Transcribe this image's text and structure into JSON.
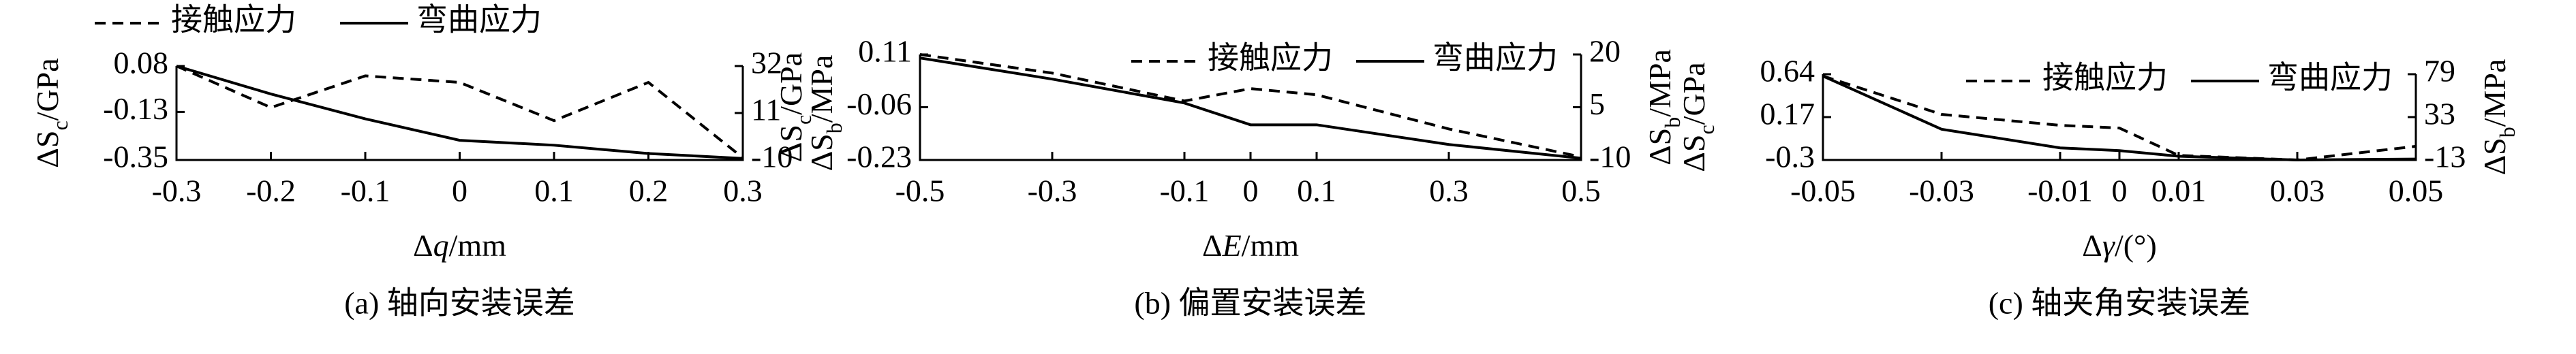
{
  "chart_data": [
    {
      "type": "line",
      "caption": "(a) 轴向安装误差",
      "xlabel": [
        "Δ",
        "q",
        "/mm"
      ],
      "ylabel": [
        "ΔS",
        "c",
        "/GPa"
      ],
      "y2label": [
        "ΔS",
        "b",
        "/MPa"
      ],
      "x": [
        -0.3,
        -0.2,
        -0.1,
        0,
        0.1,
        0.2,
        0.3
      ],
      "xlim": [
        -0.3,
        0.3
      ],
      "xticks": [
        -0.3,
        -0.2,
        -0.1,
        0,
        0.1,
        0.2,
        0.3
      ],
      "ylim": [
        -0.35,
        0.08
      ],
      "yticks": [
        0.08,
        -0.13,
        -0.35
      ],
      "y2lim": [
        -10,
        32
      ],
      "y2ticks": [
        32,
        11,
        -10
      ],
      "legend": "above",
      "series": [
        {
          "name": "接触应力",
          "color": "#000000",
          "style": "dashed",
          "values": [
            0.08,
            -0.11,
            0.035,
            0.005,
            -0.17,
            0.005,
            -0.34
          ]
        },
        {
          "name": "弯曲应力",
          "color": "#000000",
          "style": "solid",
          "axis": "y2",
          "values": [
            32,
            19.5,
            8.4,
            -1.2,
            -3.4,
            -7.1,
            -9.3
          ]
        }
      ]
    },
    {
      "type": "line",
      "caption": "(b) 偏置安装误差",
      "xlabel": [
        "Δ",
        "E",
        "/mm"
      ],
      "ylabel": [
        "ΔS",
        "c",
        "/GPa"
      ],
      "y2label": [
        "ΔS",
        "b",
        "/MPa"
      ],
      "x": [
        -0.5,
        -0.3,
        -0.1,
        0,
        0.1,
        0.3,
        0.5
      ],
      "xlim": [
        -0.5,
        0.5
      ],
      "xticks": [
        -0.5,
        -0.3,
        -0.1,
        0,
        0.1,
        0.3,
        0.5
      ],
      "ylim": [
        -0.23,
        0.11
      ],
      "yticks": [
        0.11,
        -0.06,
        -0.23
      ],
      "y2lim": [
        -10,
        20
      ],
      "y2ticks": [
        20,
        5,
        -10
      ],
      "legend": "upper right",
      "series": [
        {
          "name": "接触应力",
          "color": "#000000",
          "style": "dashed",
          "values": [
            0.11,
            0.05,
            -0.04,
            0.0,
            -0.02,
            -0.13,
            -0.22
          ]
        },
        {
          "name": "弯曲应力",
          "color": "#000000",
          "style": "solid",
          "axis": "y2",
          "values": [
            19,
            13,
            6.2,
            0,
            0,
            -5.6,
            -9.5
          ]
        }
      ]
    },
    {
      "type": "line",
      "caption": "(c) 轴夹角安装误差",
      "xlabel": [
        "Δ",
        "γ",
        "/(°)"
      ],
      "ylabel": [
        "ΔS",
        "c",
        "/GPa"
      ],
      "y2label": [
        "ΔS",
        "b",
        "/MPa"
      ],
      "x": [
        -0.05,
        -0.03,
        -0.01,
        0,
        0.01,
        0.03,
        0.05
      ],
      "xlim": [
        -0.05,
        0.05
      ],
      "xticks": [
        -0.05,
        -0.03,
        -0.01,
        0,
        0.01,
        0.03,
        0.05
      ],
      "ylim": [
        -0.3,
        0.64
      ],
      "yticks": [
        0.64,
        0.17,
        -0.3
      ],
      "y2lim": [
        -13,
        79
      ],
      "y2ticks": [
        79,
        33,
        -13
      ],
      "legend": "upper right",
      "series": [
        {
          "name": "接触应力",
          "color": "#000000",
          "style": "dashed",
          "values": [
            0.62,
            0.2,
            0.08,
            0.05,
            -0.25,
            -0.3,
            -0.15
          ]
        },
        {
          "name": "弯曲应力",
          "color": "#000000",
          "style": "solid",
          "axis": "y2",
          "values": [
            77,
            20,
            0,
            -3,
            -9,
            -13,
            -12
          ]
        }
      ]
    }
  ]
}
